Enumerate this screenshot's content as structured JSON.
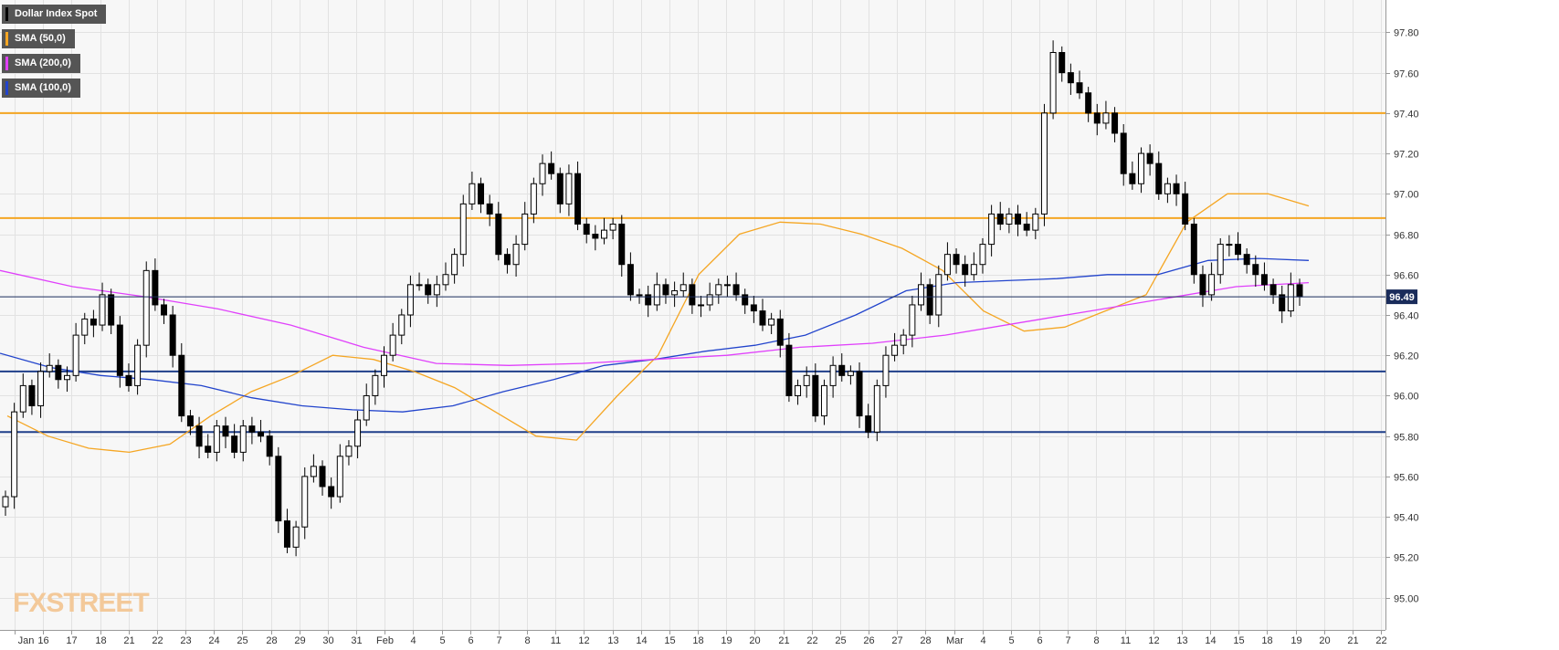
{
  "chart_data": {
    "type": "candlestick",
    "instrument": "Dollar Index Spot",
    "ylim": [
      94.84,
      97.96
    ],
    "yticks": [
      95.0,
      95.2,
      95.4,
      95.6,
      95.8,
      96.0,
      96.2,
      96.4,
      96.6,
      96.8,
      97.0,
      97.2,
      97.4,
      97.6,
      97.8
    ],
    "ytick_labels": [
      "95.00",
      "95.20",
      "95.40",
      "95.60",
      "95.80",
      "96.00",
      "96.20",
      "96.40",
      "96.60",
      "96.80",
      "97.00",
      "97.20",
      "97.40",
      "97.60",
      "97.80"
    ],
    "xticks": [
      "Jan",
      "16",
      "17",
      "18",
      "21",
      "22",
      "23",
      "24",
      "25",
      "28",
      "29",
      "30",
      "31",
      "Feb",
      "4",
      "5",
      "6",
      "7",
      "8",
      "11",
      "12",
      "13",
      "14",
      "15",
      "18",
      "19",
      "20",
      "21",
      "22",
      "25",
      "26",
      "27",
      "28",
      "Mar",
      "4",
      "5",
      "6",
      "7",
      "8",
      "11",
      "12",
      "13",
      "14",
      "15",
      "18",
      "19",
      "20",
      "21",
      "22"
    ],
    "last_price": 96.49,
    "last_price_label": "96.49",
    "horizontal_levels": [
      {
        "value": 97.4,
        "color": "#f5a623"
      },
      {
        "value": 96.88,
        "color": "#f5a623"
      },
      {
        "value": 96.12,
        "color": "#1f3f8a"
      },
      {
        "value": 95.82,
        "color": "#1f3f8a"
      }
    ],
    "closes": [
      95.5,
      95.92,
      96.05,
      95.95,
      96.12,
      96.15,
      96.08,
      96.1,
      96.3,
      96.38,
      96.35,
      96.5,
      96.35,
      96.1,
      96.05,
      96.25,
      96.62,
      96.45,
      96.4,
      96.2,
      95.9,
      95.85,
      95.75,
      95.72,
      95.85,
      95.8,
      95.72,
      95.85,
      95.82,
      95.8,
      95.7,
      95.38,
      95.25,
      95.35,
      95.6,
      95.65,
      95.55,
      95.5,
      95.7,
      95.75,
      95.88,
      96.0,
      96.1,
      96.2,
      96.3,
      96.4,
      96.55,
      96.55,
      96.5,
      96.55,
      96.6,
      96.7,
      96.95,
      97.05,
      96.95,
      96.9,
      96.7,
      96.65,
      96.75,
      96.9,
      97.05,
      97.15,
      97.1,
      96.95,
      97.1,
      96.85,
      96.8,
      96.78,
      96.82,
      96.85,
      96.65,
      96.5,
      96.5,
      96.45,
      96.55,
      96.5,
      96.52,
      96.55,
      96.45,
      96.45,
      96.5,
      96.55,
      96.55,
      96.5,
      96.45,
      96.42,
      96.35,
      96.38,
      96.25,
      96.0,
      96.05,
      96.1,
      95.9,
      96.05,
      96.15,
      96.1,
      96.12,
      95.9,
      95.82,
      96.05,
      96.2,
      96.25,
      96.3,
      96.45,
      96.55,
      96.4,
      96.6,
      96.7,
      96.65,
      96.6,
      96.65,
      96.75,
      96.9,
      96.85,
      96.9,
      96.85,
      96.82,
      96.9,
      97.4,
      97.7,
      97.6,
      97.55,
      97.5,
      97.4,
      97.35,
      97.4,
      97.3,
      97.1,
      97.05,
      97.2,
      97.15,
      97.0,
      97.05,
      97.0,
      96.85,
      96.6,
      96.5,
      96.6,
      96.75,
      96.75,
      96.7,
      96.65,
      96.6,
      96.55,
      96.5,
      96.42,
      96.55,
      96.49
    ],
    "sma_50": [
      95.9,
      95.8,
      95.74,
      95.72,
      95.76,
      95.9,
      96.02,
      96.1,
      96.2,
      96.18,
      96.12,
      96.04,
      95.92,
      95.8,
      95.78,
      96.0,
      96.2,
      96.6,
      96.8,
      96.86,
      96.85,
      96.8,
      96.73,
      96.62,
      96.42,
      96.32,
      96.34,
      96.42,
      96.5,
      96.86,
      97.0,
      97.0,
      96.94
    ],
    "sma_100": [
      96.21,
      96.14,
      96.1,
      96.08,
      96.05,
      95.99,
      95.95,
      95.93,
      95.92,
      95.95,
      96.02,
      96.08,
      96.15,
      96.18,
      96.22,
      96.25,
      96.3,
      96.4,
      96.52,
      96.56,
      96.57,
      96.58,
      96.6,
      96.6,
      96.67,
      96.68,
      96.67
    ],
    "sma_200": [
      96.62,
      96.54,
      96.49,
      96.43,
      96.35,
      96.24,
      96.16,
      96.15,
      96.16,
      96.18,
      96.2,
      96.24,
      96.26,
      96.3,
      96.36,
      96.42,
      96.48,
      96.54,
      96.56
    ]
  },
  "legend": [
    {
      "label": "Dollar Index Spot",
      "color": "#000000"
    },
    {
      "label": "SMA (50,0)",
      "color": "#f5a623"
    },
    {
      "label": "SMA (200,0)",
      "color": "#e040fb"
    },
    {
      "label": "SMA (100,0)",
      "color": "#2244cc"
    }
  ],
  "watermark": "FXSTREET"
}
